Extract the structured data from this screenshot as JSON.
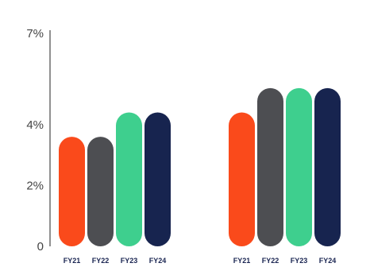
{
  "chart_data": {
    "type": "bar",
    "title": "",
    "xlabel": "",
    "ylabel": "",
    "ylim": [
      0,
      7
    ],
    "yticks": [
      0,
      2,
      4,
      7
    ],
    "ytick_labels": [
      "0",
      "2%",
      "4%",
      "7%"
    ],
    "grid": false,
    "legend": "none",
    "groups": [
      {
        "categories": [
          "FY21",
          "FY22",
          "FY23",
          "FY24"
        ],
        "values": [
          3.6,
          3.6,
          4.4,
          4.4
        ]
      },
      {
        "categories": [
          "FY21",
          "FY22",
          "FY23",
          "FY24"
        ],
        "values": [
          4.4,
          5.2,
          5.2,
          5.2
        ]
      }
    ],
    "colors": [
      "#fa4a1b",
      "#4d4e52",
      "#3ecf8e",
      "#17244f"
    ]
  }
}
